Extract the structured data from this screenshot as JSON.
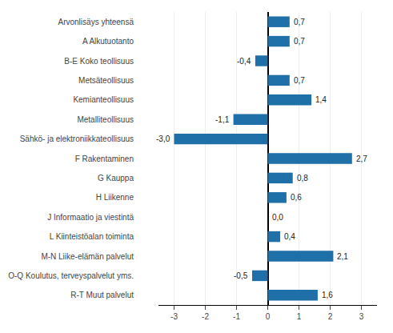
{
  "chart_data": {
    "type": "bar",
    "orientation": "horizontal",
    "categories": [
      "Arvonlisäys yhteensä",
      "A Alkutuotanto",
      "B-E Koko teollisuus",
      "Metsäteollisuus",
      "Kemianteollisuus",
      "Metalliteollisuus",
      "Sähkö- ja elektroniikkateollisuus",
      "F Rakentaminen",
      "G Kauppa",
      "H Liikenne",
      "J Informaatio ja viestintä",
      "L Kiinteistöalan toiminta",
      "M-N Liike-elämän palvelut",
      "O-Q Koulutus, terveyspalvelut yms.",
      "R-T Muut palvelut"
    ],
    "values": [
      0.7,
      0.7,
      -0.4,
      0.7,
      1.4,
      -1.1,
      -3.0,
      2.7,
      0.8,
      0.6,
      0.0,
      0.4,
      2.1,
      -0.5,
      1.6
    ],
    "value_labels": [
      "0,7",
      "0,7",
      "-0,4",
      "0,7",
      "1,4",
      "-1,1",
      "-3,0",
      "2,7",
      "0,8",
      "0,6",
      "0,0",
      "0,4",
      "2,1",
      "-0,5",
      "1,6"
    ],
    "color": "#1f6fa8",
    "xlim": [
      -3.5,
      3.5
    ],
    "xticks": [
      -3,
      -2,
      -1,
      0,
      1,
      2,
      3
    ],
    "grid": true,
    "data_labels": true
  }
}
